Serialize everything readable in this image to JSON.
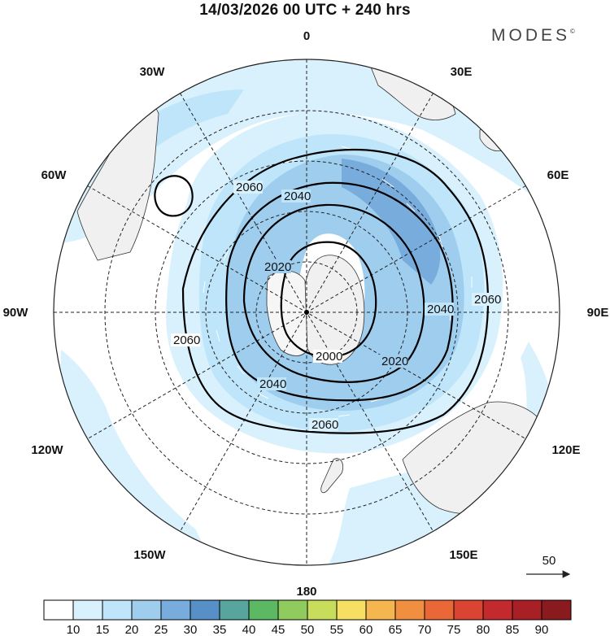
{
  "title": "14/03/2026  00 UTC  + 240 hrs",
  "brand": "MODES",
  "brand_mark": "©",
  "meridian_labels": {
    "m0": "0",
    "m30e": "30E",
    "m60e": "60E",
    "m90e": "90E",
    "m120e": "120E",
    "m150e": "150E",
    "m180": "180",
    "m150w": "150W",
    "m120w": "120W",
    "m90w": "90W",
    "m60w": "60W",
    "m30w": "30W"
  },
  "contour_labels": {
    "c2060_a": "2060",
    "c2040_a": "2040",
    "c2020_a": "2020",
    "c2000_a": "2000",
    "c2020_b": "2020",
    "c2040_b": "2040",
    "c2060_b": "2060",
    "c2040_c": "2040",
    "c2060_c": "2060",
    "c2060_d": "2060"
  },
  "wind_reference": {
    "value": "50"
  },
  "colorbar": {
    "ticks": [
      "10",
      "15",
      "20",
      "25",
      "30",
      "35",
      "40",
      "45",
      "50",
      "55",
      "60",
      "65",
      "70",
      "75",
      "80",
      "85",
      "90"
    ],
    "colors": [
      "#ffffff",
      "#d9f1fd",
      "#bfe5fa",
      "#9ecdee",
      "#78acdc",
      "#5690c6",
      "#57a59d",
      "#5cb863",
      "#8fcc5d",
      "#c9dd5c",
      "#f7df63",
      "#f5b650",
      "#f08f40",
      "#ea6837",
      "#db4433",
      "#c32a2e",
      "#a81f26",
      "#891a1e"
    ]
  },
  "colors": {
    "land": "#f0f0f0",
    "shade_light": "#d9f1fd",
    "shade_mid": "#bfe5fa",
    "shade_dark": "#9ecdee",
    "shade_darker": "#78acdc"
  }
}
